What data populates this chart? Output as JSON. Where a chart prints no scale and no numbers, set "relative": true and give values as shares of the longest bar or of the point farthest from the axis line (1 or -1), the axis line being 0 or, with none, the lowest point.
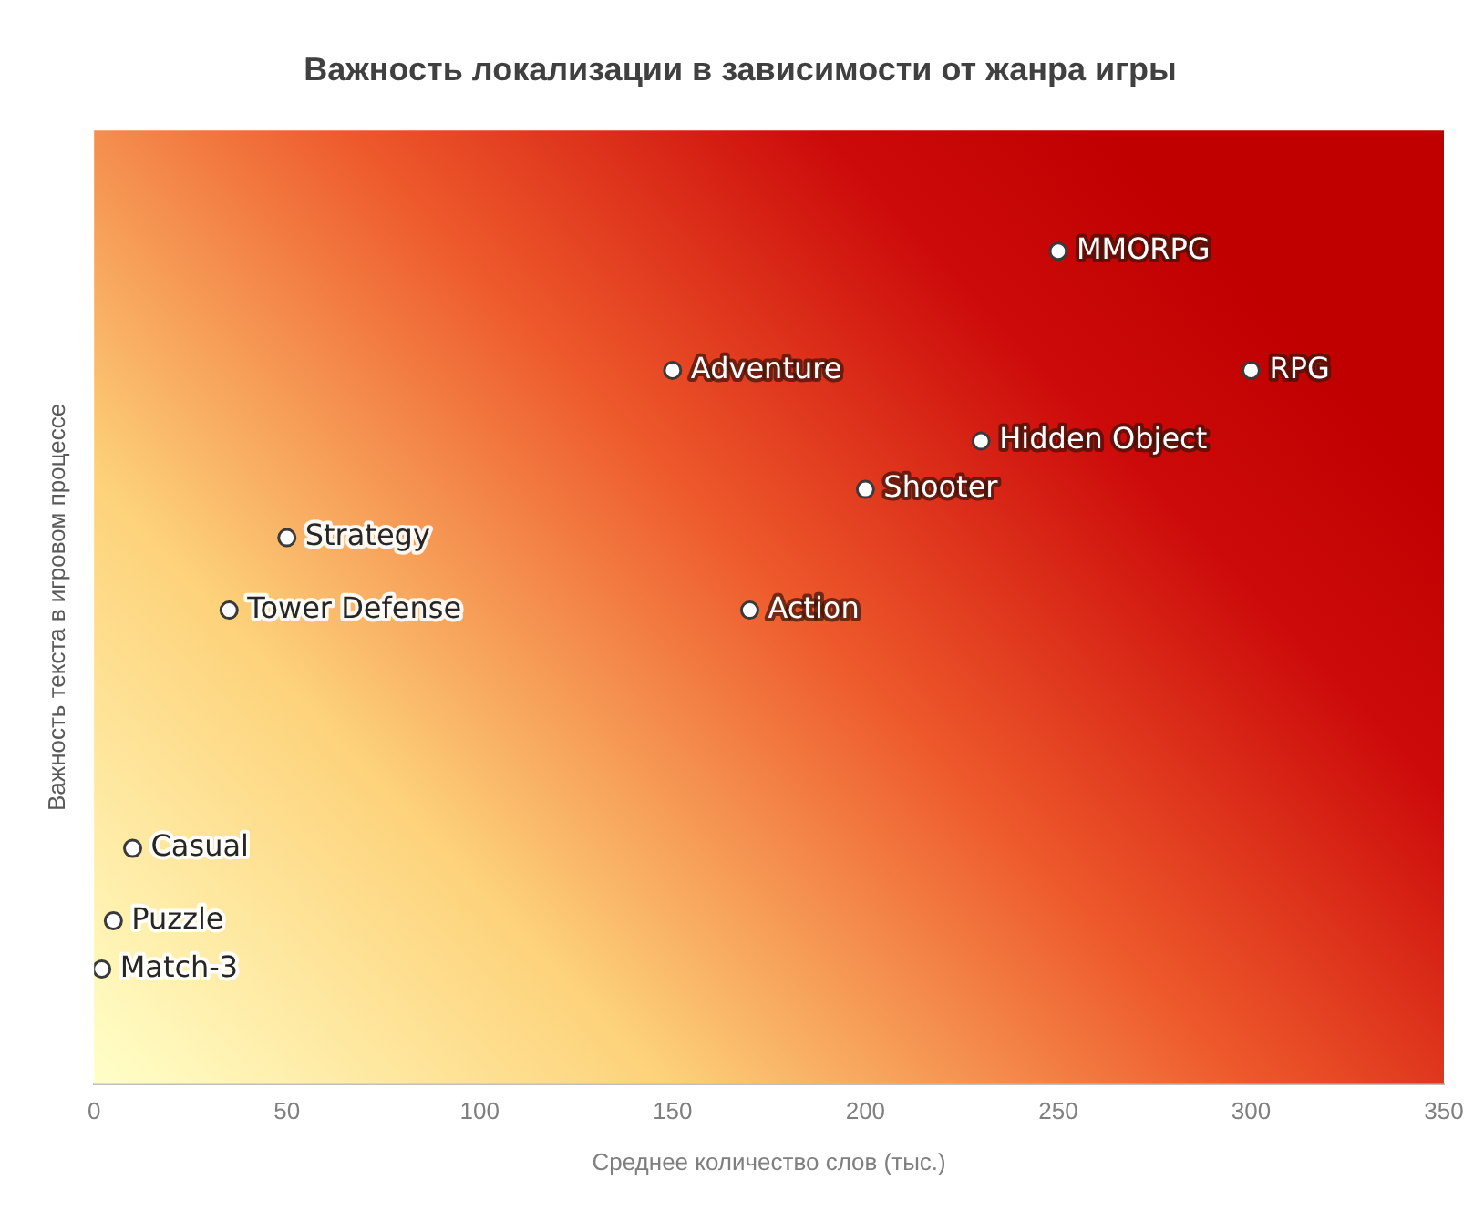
{
  "chart_data": {
    "type": "scatter",
    "title": "Важность локализации в зависимости от жанра игры",
    "xlabel": "Среднее количество слов (тыс.)",
    "ylabel": "Важность текста в игровом процессе",
    "x": [
      250,
      150,
      300,
      230,
      200,
      50,
      35,
      170,
      10,
      5,
      2
    ],
    "series": [
      {
        "color": "#ffffff",
        "values": [
          1,
          0.857,
          0.857,
          0.772,
          0.714,
          0.656,
          0.569,
          0.569,
          0.283,
          0.196,
          0.138
        ]
      }
    ],
    "relative": true,
    "xlim": [
      0,
      350
    ],
    "xticks": [
      0,
      50,
      100,
      150,
      200,
      250,
      300,
      350
    ],
    "tick_labels": "x",
    "grid": false,
    "legend": false,
    "marker": "circle",
    "annotations": [
      {
        "text": "MMORPG",
        "x": 250,
        "y": 1
      },
      {
        "text": "Adventure",
        "x": 150,
        "y": 0.857
      },
      {
        "text": "RPG",
        "x": 300,
        "y": 0.857
      },
      {
        "text": "Hidden Object",
        "x": 230,
        "y": 0.772
      },
      {
        "text": "Shooter",
        "x": 200,
        "y": 0.714
      },
      {
        "text": "Strategy",
        "x": 50,
        "y": 0.656
      },
      {
        "text": "Tower Defense",
        "x": 35,
        "y": 0.569
      },
      {
        "text": "Action",
        "x": 170,
        "y": 0.569
      },
      {
        "text": "Casual",
        "x": 10,
        "y": 0.283
      },
      {
        "text": "Puzzle",
        "x": 5,
        "y": 0.196
      },
      {
        "text": "Match-3",
        "x": 2,
        "y": 0.138
      }
    ]
  }
}
